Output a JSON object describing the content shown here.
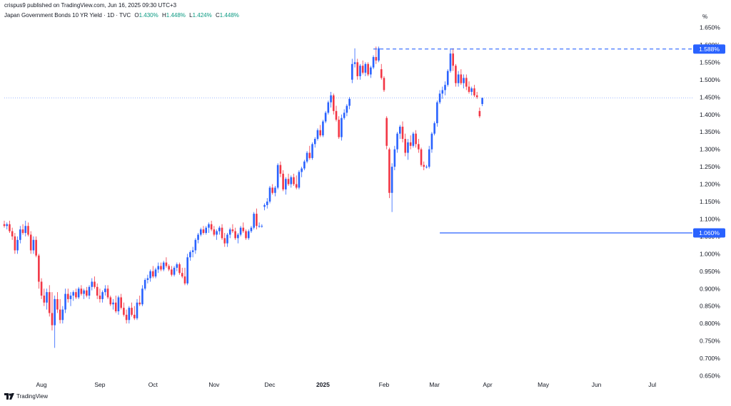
{
  "header": {
    "published": "crispus9 published on TradingView.com, Jun 16, 2025 09:30 UTC+3",
    "symbol": "Japan Government Bonds 10 YR Yield · 1D · TVC",
    "open_label": "O",
    "open": "1.430%",
    "high_label": "H",
    "high": "1.448%",
    "low_label": "L",
    "low": "1.424%",
    "close_label": "C",
    "close": "1.448%",
    "unit": "%"
  },
  "footer": {
    "brand": "TradingView"
  },
  "colors": {
    "up": "#2962ff",
    "down": "#f23645",
    "level": "#2962ff",
    "text": "#131722",
    "legend_value": "#089981"
  },
  "chart_data": {
    "type": "candlestick",
    "title": "Japan Government Bonds 10 YR Yield · 1D · TVC",
    "ylabel": "%",
    "ylim": [
      0.63,
      1.67
    ],
    "yticks": [
      "0.650%",
      "0.700%",
      "0.750%",
      "0.800%",
      "0.850%",
      "0.900%",
      "0.950%",
      "1.000%",
      "1.050%",
      "1.100%",
      "1.150%",
      "1.200%",
      "1.250%",
      "1.300%",
      "1.350%",
      "1.400%",
      "1.450%",
      "1.500%",
      "1.550%",
      "1.600%",
      "1.650%"
    ],
    "xlabels": [
      {
        "label": "Aug",
        "bar": 14
      },
      {
        "label": "Sep",
        "bar": 36
      },
      {
        "label": "Oct",
        "bar": 56
      },
      {
        "label": "Nov",
        "bar": 79
      },
      {
        "label": "Dec",
        "bar": 100
      },
      {
        "label": "2025",
        "bar": 120
      },
      {
        "label": "Feb",
        "bar": 143
      },
      {
        "label": "Mar",
        "bar": 162
      },
      {
        "label": "Apr",
        "bar": 182
      },
      {
        "label": "May",
        "bar": 203
      },
      {
        "label": "Jun",
        "bar": 223
      },
      {
        "label": "Jul",
        "bar": 244
      }
    ],
    "levels": [
      {
        "value": 1.588,
        "label": "1.588%",
        "style": "dashed",
        "from_bar": 139
      },
      {
        "value": 1.06,
        "label": "1.060%",
        "style": "solid",
        "from_bar": 164
      }
    ],
    "current_price": 1.448,
    "candles": [
      [
        1.085,
        1.095,
        1.075,
        1.08
      ],
      [
        1.08,
        1.09,
        1.07,
        1.085
      ],
      [
        1.085,
        1.095,
        1.06,
        1.065
      ],
      [
        1.065,
        1.075,
        1.04,
        1.05
      ],
      [
        1.05,
        1.06,
        1.0,
        1.01
      ],
      [
        1.01,
        1.05,
        1.0,
        1.04
      ],
      [
        1.04,
        1.08,
        1.03,
        1.07
      ],
      [
        1.07,
        1.085,
        1.055,
        1.06
      ],
      [
        1.06,
        1.095,
        1.05,
        1.08
      ],
      [
        1.08,
        1.09,
        1.05,
        1.055
      ],
      [
        1.055,
        1.065,
        1.0,
        1.01
      ],
      [
        1.01,
        1.05,
        1.0,
        1.04
      ],
      [
        1.04,
        1.05,
        0.99,
        0.995
      ],
      [
        0.995,
        1.0,
        0.9,
        0.92
      ],
      [
        0.92,
        0.93,
        0.87,
        0.88
      ],
      [
        0.88,
        0.9,
        0.85,
        0.86
      ],
      [
        0.86,
        0.9,
        0.84,
        0.89
      ],
      [
        0.89,
        0.91,
        0.82,
        0.83
      ],
      [
        0.83,
        0.89,
        0.78,
        0.795
      ],
      [
        0.795,
        0.88,
        0.73,
        0.87
      ],
      [
        0.87,
        0.89,
        0.83,
        0.84
      ],
      [
        0.84,
        0.87,
        0.8,
        0.81
      ],
      [
        0.81,
        0.85,
        0.8,
        0.84
      ],
      [
        0.84,
        0.9,
        0.83,
        0.885
      ],
      [
        0.885,
        0.9,
        0.86,
        0.87
      ],
      [
        0.87,
        0.89,
        0.85,
        0.88
      ],
      [
        0.88,
        0.895,
        0.865,
        0.89
      ],
      [
        0.89,
        0.9,
        0.87,
        0.875
      ],
      [
        0.875,
        0.905,
        0.87,
        0.9
      ],
      [
        0.9,
        0.91,
        0.88,
        0.885
      ],
      [
        0.885,
        0.9,
        0.87,
        0.895
      ],
      [
        0.895,
        0.905,
        0.875,
        0.88
      ],
      [
        0.88,
        0.91,
        0.87,
        0.905
      ],
      [
        0.905,
        0.93,
        0.895,
        0.92
      ],
      [
        0.92,
        0.935,
        0.9,
        0.905
      ],
      [
        0.905,
        0.915,
        0.87,
        0.88
      ],
      [
        0.88,
        0.9,
        0.86,
        0.87
      ],
      [
        0.87,
        0.895,
        0.86,
        0.89
      ],
      [
        0.89,
        0.91,
        0.88,
        0.9
      ],
      [
        0.9,
        0.91,
        0.87,
        0.875
      ],
      [
        0.875,
        0.88,
        0.85,
        0.855
      ],
      [
        0.855,
        0.87,
        0.84,
        0.86
      ],
      [
        0.86,
        0.88,
        0.83,
        0.835
      ],
      [
        0.835,
        0.88,
        0.825,
        0.875
      ],
      [
        0.875,
        0.885,
        0.84,
        0.845
      ],
      [
        0.845,
        0.86,
        0.82,
        0.825
      ],
      [
        0.825,
        0.84,
        0.8,
        0.81
      ],
      [
        0.81,
        0.85,
        0.8,
        0.845
      ],
      [
        0.845,
        0.86,
        0.82,
        0.825
      ],
      [
        0.825,
        0.85,
        0.81,
        0.815
      ],
      [
        0.815,
        0.87,
        0.81,
        0.86
      ],
      [
        0.86,
        0.88,
        0.85,
        0.855
      ],
      [
        0.855,
        0.91,
        0.85,
        0.9
      ],
      [
        0.9,
        0.93,
        0.895,
        0.925
      ],
      [
        0.925,
        0.94,
        0.915,
        0.93
      ],
      [
        0.93,
        0.955,
        0.92,
        0.95
      ],
      [
        0.95,
        0.965,
        0.93,
        0.935
      ],
      [
        0.935,
        0.96,
        0.93,
        0.955
      ],
      [
        0.955,
        0.975,
        0.945,
        0.965
      ],
      [
        0.965,
        0.975,
        0.95,
        0.955
      ],
      [
        0.955,
        0.98,
        0.95,
        0.975
      ],
      [
        0.975,
        0.99,
        0.96,
        0.965
      ],
      [
        0.965,
        0.97,
        0.95,
        0.955
      ],
      [
        0.955,
        0.965,
        0.935,
        0.94
      ],
      [
        0.94,
        0.965,
        0.935,
        0.96
      ],
      [
        0.96,
        0.975,
        0.95,
        0.97
      ],
      [
        0.97,
        0.975,
        0.94,
        0.945
      ],
      [
        0.945,
        0.96,
        0.93,
        0.935
      ],
      [
        0.935,
        0.96,
        0.91,
        0.915
      ],
      [
        0.915,
        1.0,
        0.91,
        0.99
      ],
      [
        0.99,
        1.01,
        0.98,
        1.005
      ],
      [
        1.005,
        1.02,
        0.99,
        1.01
      ],
      [
        1.01,
        1.045,
        1.0,
        1.04
      ],
      [
        1.04,
        1.06,
        1.03,
        1.055
      ],
      [
        1.055,
        1.075,
        1.05,
        1.07
      ],
      [
        1.07,
        1.08,
        1.055,
        1.06
      ],
      [
        1.06,
        1.08,
        1.055,
        1.075
      ],
      [
        1.075,
        1.09,
        1.06,
        1.085
      ],
      [
        1.085,
        1.095,
        1.065,
        1.07
      ],
      [
        1.07,
        1.08,
        1.05,
        1.055
      ],
      [
        1.055,
        1.07,
        1.04,
        1.065
      ],
      [
        1.065,
        1.08,
        1.055,
        1.075
      ],
      [
        1.075,
        1.085,
        1.04,
        1.045
      ],
      [
        1.045,
        1.06,
        1.02,
        1.03
      ],
      [
        1.03,
        1.06,
        1.02,
        1.055
      ],
      [
        1.055,
        1.075,
        1.045,
        1.07
      ],
      [
        1.07,
        1.085,
        1.06,
        1.065
      ],
      [
        1.065,
        1.075,
        1.04,
        1.045
      ],
      [
        1.045,
        1.06,
        1.03,
        1.055
      ],
      [
        1.055,
        1.08,
        1.05,
        1.075
      ],
      [
        1.075,
        1.09,
        1.06,
        1.065
      ],
      [
        1.065,
        1.07,
        1.04,
        1.045
      ],
      [
        1.045,
        1.07,
        1.04,
        1.065
      ],
      [
        1.065,
        1.08,
        1.06,
        1.075
      ],
      [
        1.075,
        1.12,
        1.07,
        1.115
      ],
      [
        1.115,
        1.13,
        1.07,
        1.08
      ],
      [
        1.08,
        1.09,
        1.075,
        1.08
      ],
      [
        1.08,
        1.085,
        1.075,
        1.08
      ],
      [
        1.135,
        1.145,
        1.125,
        1.14
      ],
      [
        1.14,
        1.16,
        1.13,
        1.15
      ],
      [
        1.15,
        1.195,
        1.145,
        1.19
      ],
      [
        1.19,
        1.2,
        1.17,
        1.175
      ],
      [
        1.175,
        1.195,
        1.165,
        1.19
      ],
      [
        1.19,
        1.26,
        1.185,
        1.255
      ],
      [
        1.255,
        1.265,
        1.22,
        1.23
      ],
      [
        1.23,
        1.24,
        1.18,
        1.185
      ],
      [
        1.185,
        1.22,
        1.17,
        1.215
      ],
      [
        1.215,
        1.23,
        1.195,
        1.2
      ],
      [
        1.2,
        1.225,
        1.19,
        1.22
      ],
      [
        1.22,
        1.23,
        1.195,
        1.2
      ],
      [
        1.2,
        1.225,
        1.185,
        1.19
      ],
      [
        1.19,
        1.24,
        1.185,
        1.235
      ],
      [
        1.235,
        1.25,
        1.22,
        1.245
      ],
      [
        1.245,
        1.27,
        1.24,
        1.265
      ],
      [
        1.265,
        1.295,
        1.26,
        1.29
      ],
      [
        1.29,
        1.31,
        1.27,
        1.275
      ],
      [
        1.275,
        1.32,
        1.27,
        1.315
      ],
      [
        1.315,
        1.335,
        1.305,
        1.33
      ],
      [
        1.33,
        1.36,
        1.325,
        1.355
      ],
      [
        1.355,
        1.37,
        1.335,
        1.34
      ],
      [
        1.34,
        1.385,
        1.335,
        1.38
      ],
      [
        1.38,
        1.41,
        1.375,
        1.405
      ],
      [
        1.405,
        1.44,
        1.4,
        1.435
      ],
      [
        1.435,
        1.465,
        1.42,
        1.455
      ],
      [
        1.455,
        1.46,
        1.4,
        1.41
      ],
      [
        1.41,
        1.425,
        1.38,
        1.385
      ],
      [
        1.385,
        1.395,
        1.33,
        1.335
      ],
      [
        1.335,
        1.4,
        1.325,
        1.39
      ],
      [
        1.39,
        1.415,
        1.385,
        1.405
      ],
      [
        1.405,
        1.43,
        1.395,
        1.425
      ],
      [
        1.425,
        1.45,
        1.415,
        1.445
      ],
      [
        1.5,
        1.56,
        1.49,
        1.545
      ],
      [
        1.545,
        1.59,
        1.535,
        1.55
      ],
      [
        1.55,
        1.56,
        1.5,
        1.51
      ],
      [
        1.51,
        1.545,
        1.5,
        1.54
      ],
      [
        1.54,
        1.555,
        1.515,
        1.52
      ],
      [
        1.52,
        1.55,
        1.51,
        1.545
      ],
      [
        1.545,
        1.55,
        1.51,
        1.515
      ],
      [
        1.515,
        1.54,
        1.505,
        1.535
      ],
      [
        1.535,
        1.57,
        1.53,
        1.565
      ],
      [
        1.565,
        1.595,
        1.545,
        1.555
      ],
      [
        1.555,
        1.595,
        1.55,
        1.59
      ],
      [
        1.53,
        1.545,
        1.5,
        1.505
      ],
      [
        1.505,
        1.51,
        1.465,
        1.47
      ],
      [
        1.39,
        1.395,
        1.3,
        1.31
      ],
      [
        1.3,
        1.305,
        1.16,
        1.175
      ],
      [
        1.175,
        1.26,
        1.12,
        1.25
      ],
      [
        1.25,
        1.31,
        1.24,
        1.3
      ],
      [
        1.3,
        1.35,
        1.29,
        1.345
      ],
      [
        1.345,
        1.37,
        1.33,
        1.365
      ],
      [
        1.365,
        1.38,
        1.32,
        1.33
      ],
      [
        1.33,
        1.345,
        1.28,
        1.29
      ],
      [
        1.29,
        1.33,
        1.27,
        1.32
      ],
      [
        1.32,
        1.34,
        1.3,
        1.31
      ],
      [
        1.31,
        1.35,
        1.305,
        1.345
      ],
      [
        1.345,
        1.355,
        1.305,
        1.315
      ],
      [
        1.315,
        1.33,
        1.29,
        1.3
      ],
      [
        1.3,
        1.305,
        1.25,
        1.255
      ],
      [
        1.255,
        1.265,
        1.24,
        1.25
      ],
      [
        1.25,
        1.255,
        1.245,
        1.25
      ],
      [
        1.25,
        1.31,
        1.245,
        1.3
      ],
      [
        1.3,
        1.35,
        1.29,
        1.345
      ],
      [
        1.345,
        1.38,
        1.34,
        1.375
      ],
      [
        1.375,
        1.44,
        1.365,
        1.435
      ],
      [
        1.435,
        1.47,
        1.43,
        1.46
      ],
      [
        1.46,
        1.48,
        1.445,
        1.47
      ],
      [
        1.47,
        1.495,
        1.455,
        1.485
      ],
      [
        1.485,
        1.53,
        1.48,
        1.525
      ],
      [
        1.525,
        1.59,
        1.52,
        1.575
      ],
      [
        1.575,
        1.59,
        1.525,
        1.54
      ],
      [
        1.54,
        1.545,
        1.48,
        1.49
      ],
      [
        1.49,
        1.525,
        1.48,
        1.515
      ],
      [
        1.515,
        1.53,
        1.485,
        1.49
      ],
      [
        1.49,
        1.515,
        1.475,
        1.505
      ],
      [
        1.505,
        1.515,
        1.47,
        1.48
      ],
      [
        1.48,
        1.495,
        1.46,
        1.465
      ],
      [
        1.465,
        1.48,
        1.455,
        1.475
      ],
      [
        1.475,
        1.485,
        1.45,
        1.455
      ],
      [
        1.455,
        1.465,
        1.445,
        1.45
      ],
      [
        1.41,
        1.42,
        1.39,
        1.395
      ],
      [
        1.43,
        1.448,
        1.424,
        1.448
      ]
    ]
  }
}
